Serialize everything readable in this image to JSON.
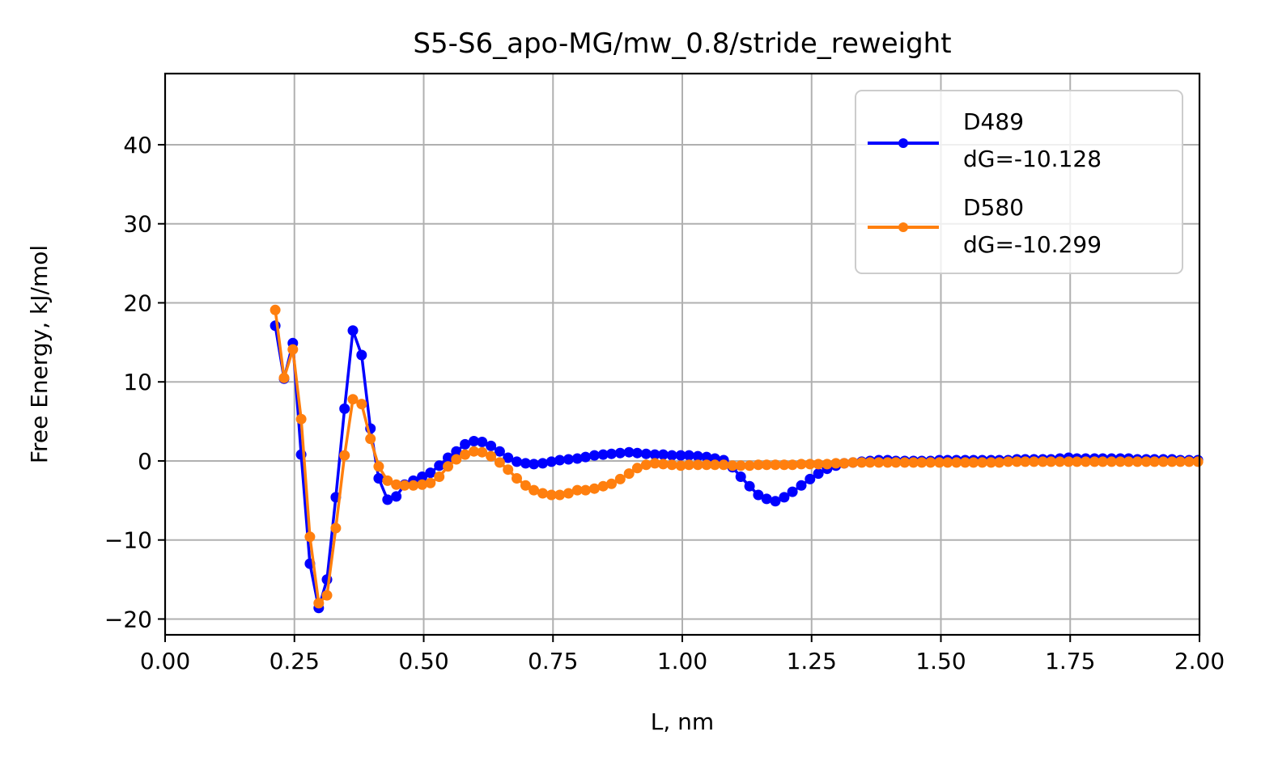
{
  "chart_data": {
    "type": "line",
    "title": "S5-S6_apo-MG/mw_0.8/stride_reweight",
    "xlabel": "L, nm",
    "ylabel": "Free Energy, kJ/mol",
    "xlim": [
      0.0,
      2.0
    ],
    "ylim": [
      -22,
      49
    ],
    "xticks": [
      "0.00",
      "0.25",
      "0.50",
      "0.75",
      "1.00",
      "1.25",
      "1.50",
      "1.75",
      "2.00"
    ],
    "xtick_values": [
      0,
      0.25,
      0.5,
      0.75,
      1.0,
      1.25,
      1.5,
      1.75,
      2.0
    ],
    "yticks": [
      "−20",
      "−10",
      "0",
      "10",
      "20",
      "30",
      "40"
    ],
    "ytick_values": [
      -20,
      -10,
      0,
      10,
      20,
      30,
      40
    ],
    "grid": true,
    "legend_position": "top-right",
    "series": [
      {
        "name": "D489",
        "label_line2": "dG=-10.128",
        "color": "#0000ff",
        "x": [
          0.213,
          0.23,
          0.247,
          0.263,
          0.28,
          0.297,
          0.313,
          0.33,
          0.347,
          0.363,
          0.38,
          0.397,
          0.413,
          0.43,
          0.447,
          0.463,
          0.48,
          0.497,
          0.513,
          0.53,
          0.547,
          0.563,
          0.58,
          0.597,
          0.613,
          0.63,
          0.647,
          0.663,
          0.68,
          0.697,
          0.713,
          0.73,
          0.747,
          0.763,
          0.78,
          0.797,
          0.813,
          0.83,
          0.847,
          0.863,
          0.88,
          0.897,
          0.913,
          0.93,
          0.947,
          0.963,
          0.98,
          0.997,
          1.013,
          1.03,
          1.047,
          1.063,
          1.08,
          1.097,
          1.113,
          1.13,
          1.147,
          1.163,
          1.18,
          1.197,
          1.213,
          1.23,
          1.247,
          1.263,
          1.28,
          1.297,
          1.313,
          1.33,
          1.347,
          1.363,
          1.38,
          1.397,
          1.413,
          1.43,
          1.447,
          1.463,
          1.48,
          1.497,
          1.513,
          1.53,
          1.547,
          1.563,
          1.58,
          1.597,
          1.613,
          1.63,
          1.647,
          1.663,
          1.68,
          1.697,
          1.713,
          1.73,
          1.747,
          1.763,
          1.78,
          1.797,
          1.813,
          1.83,
          1.847,
          1.863,
          1.88,
          1.897,
          1.913,
          1.93,
          1.947,
          1.963,
          1.98,
          1.997
        ],
        "y": [
          17.1,
          10.4,
          14.9,
          0.8,
          -13.0,
          -18.6,
          -15.0,
          -4.6,
          6.6,
          16.5,
          13.4,
          4.1,
          -2.2,
          -4.9,
          -4.5,
          -3.0,
          -2.5,
          -2.0,
          -1.5,
          -0.6,
          0.4,
          1.2,
          2.1,
          2.5,
          2.4,
          1.9,
          1.2,
          0.4,
          -0.1,
          -0.3,
          -0.4,
          -0.3,
          -0.1,
          0.1,
          0.2,
          0.3,
          0.5,
          0.7,
          0.8,
          0.9,
          1.0,
          1.1,
          1.0,
          0.9,
          0.8,
          0.8,
          0.7,
          0.7,
          0.7,
          0.6,
          0.5,
          0.3,
          0.1,
          -0.8,
          -2.0,
          -3.2,
          -4.3,
          -4.8,
          -5.1,
          -4.6,
          -3.9,
          -3.1,
          -2.3,
          -1.6,
          -1.0,
          -0.6,
          -0.3,
          -0.2,
          -0.1,
          0.0,
          0.1,
          0.1,
          0.0,
          0.0,
          0.0,
          0.0,
          0.0,
          0.1,
          0.1,
          0.1,
          0.1,
          0.1,
          0.1,
          0.1,
          0.1,
          0.1,
          0.2,
          0.2,
          0.2,
          0.2,
          0.2,
          0.3,
          0.4,
          0.3,
          0.3,
          0.3,
          0.3,
          0.3,
          0.3,
          0.3,
          0.2,
          0.2,
          0.2,
          0.2,
          0.2,
          0.1,
          0.1,
          0.1
        ]
      },
      {
        "name": "D580",
        "label_line2": "dG=-10.299",
        "color": "#ff7f0e",
        "x": [
          0.213,
          0.23,
          0.247,
          0.263,
          0.28,
          0.297,
          0.313,
          0.33,
          0.347,
          0.363,
          0.38,
          0.397,
          0.413,
          0.43,
          0.447,
          0.463,
          0.48,
          0.497,
          0.513,
          0.53,
          0.547,
          0.563,
          0.58,
          0.597,
          0.613,
          0.63,
          0.647,
          0.663,
          0.68,
          0.697,
          0.713,
          0.73,
          0.747,
          0.763,
          0.78,
          0.797,
          0.813,
          0.83,
          0.847,
          0.863,
          0.88,
          0.897,
          0.913,
          0.93,
          0.947,
          0.963,
          0.98,
          0.997,
          1.013,
          1.03,
          1.047,
          1.063,
          1.08,
          1.097,
          1.113,
          1.13,
          1.147,
          1.163,
          1.18,
          1.197,
          1.213,
          1.23,
          1.247,
          1.263,
          1.28,
          1.297,
          1.313,
          1.33,
          1.347,
          1.363,
          1.38,
          1.397,
          1.413,
          1.43,
          1.447,
          1.463,
          1.48,
          1.497,
          1.513,
          1.53,
          1.547,
          1.563,
          1.58,
          1.597,
          1.613,
          1.63,
          1.647,
          1.663,
          1.68,
          1.697,
          1.713,
          1.73,
          1.747,
          1.763,
          1.78,
          1.797,
          1.813,
          1.83,
          1.847,
          1.863,
          1.88,
          1.897,
          1.913,
          1.93,
          1.947,
          1.963,
          1.98,
          1.997
        ],
        "y": [
          19.1,
          10.5,
          14.1,
          5.3,
          -9.6,
          -18.0,
          -17.0,
          -8.5,
          0.7,
          7.8,
          7.2,
          2.8,
          -0.7,
          -2.5,
          -3.0,
          -3.1,
          -3.1,
          -3.0,
          -2.8,
          -2.0,
          -0.7,
          0.2,
          0.8,
          1.2,
          1.1,
          0.6,
          -0.2,
          -1.1,
          -2.2,
          -3.1,
          -3.7,
          -4.1,
          -4.3,
          -4.3,
          -4.1,
          -3.7,
          -3.7,
          -3.5,
          -3.2,
          -2.9,
          -2.3,
          -1.6,
          -0.9,
          -0.5,
          -0.3,
          -0.4,
          -0.5,
          -0.6,
          -0.5,
          -0.5,
          -0.5,
          -0.5,
          -0.5,
          -0.6,
          -0.6,
          -0.6,
          -0.5,
          -0.5,
          -0.5,
          -0.5,
          -0.5,
          -0.4,
          -0.4,
          -0.4,
          -0.4,
          -0.3,
          -0.3,
          -0.2,
          -0.2,
          -0.2,
          -0.2,
          -0.2,
          -0.2,
          -0.2,
          -0.2,
          -0.2,
          -0.2,
          -0.2,
          -0.2,
          -0.2,
          -0.2,
          -0.2,
          -0.2,
          -0.2,
          -0.2,
          -0.1,
          -0.1,
          -0.1,
          -0.1,
          -0.1,
          -0.1,
          -0.1,
          -0.1,
          -0.1,
          -0.1,
          -0.1,
          -0.1,
          -0.1,
          -0.1,
          -0.1,
          -0.1,
          -0.1,
          -0.1,
          -0.1,
          -0.1,
          -0.1,
          -0.1,
          -0.1
        ]
      }
    ]
  }
}
